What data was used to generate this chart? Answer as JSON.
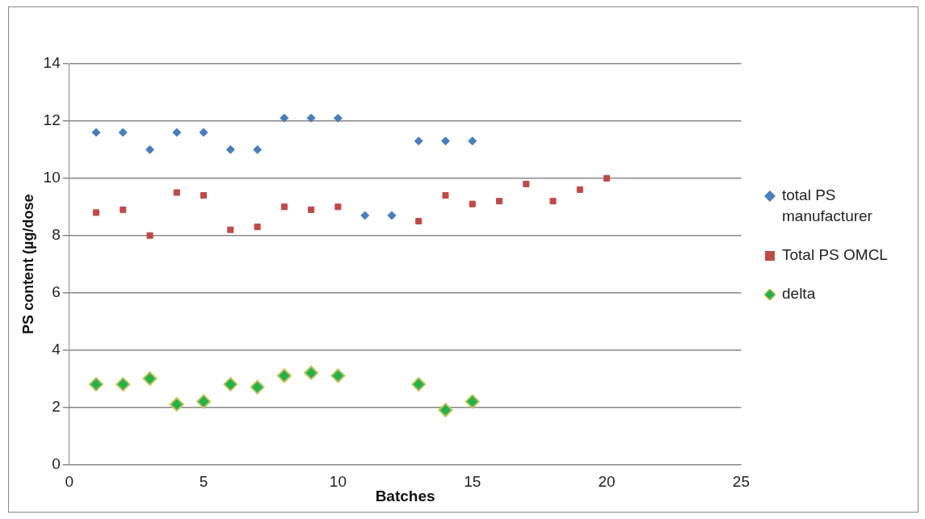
{
  "chart_data": {
    "type": "scatter",
    "xlabel": "Batches",
    "ylabel": "PS content (µg/dose",
    "xlim": [
      0,
      25
    ],
    "xticks": [
      0,
      5,
      10,
      15,
      20,
      25
    ],
    "ylim": [
      0,
      14
    ],
    "yticks": [
      0,
      2,
      4,
      6,
      8,
      10,
      12,
      14
    ],
    "grid": "y",
    "legend": "right",
    "series": [
      {
        "name": "total PS manufacturer",
        "color": "#4a7ebb",
        "marker": "diamond",
        "x": [
          1,
          2,
          3,
          4,
          5,
          6,
          7,
          8,
          9,
          10,
          11,
          12,
          13,
          14,
          15
        ],
        "values": [
          11.6,
          11.6,
          11.0,
          11.6,
          11.6,
          11.0,
          11.0,
          12.1,
          12.1,
          12.1,
          8.7,
          8.7,
          11.3,
          11.3,
          11.3
        ]
      },
      {
        "name": "Total PS OMCL",
        "color": "#be4b48",
        "marker": "square",
        "x": [
          1,
          2,
          3,
          4,
          5,
          6,
          7,
          8,
          9,
          10,
          13,
          14,
          15,
          16,
          17,
          18,
          19,
          20
        ],
        "values": [
          8.8,
          8.9,
          8.0,
          9.5,
          9.4,
          8.2,
          8.3,
          9.0,
          8.9,
          9.0,
          8.5,
          9.4,
          9.1,
          9.2,
          9.8,
          9.2,
          9.6,
          10.0
        ]
      },
      {
        "name": "delta",
        "color": "#22b24c",
        "marker": "diamond",
        "x": [
          1,
          2,
          3,
          4,
          5,
          6,
          7,
          8,
          9,
          10,
          13,
          14,
          15
        ],
        "values": [
          2.8,
          2.8,
          3.0,
          2.1,
          2.2,
          2.8,
          2.7,
          3.1,
          3.2,
          3.1,
          2.8,
          1.9,
          2.2
        ]
      }
    ]
  }
}
